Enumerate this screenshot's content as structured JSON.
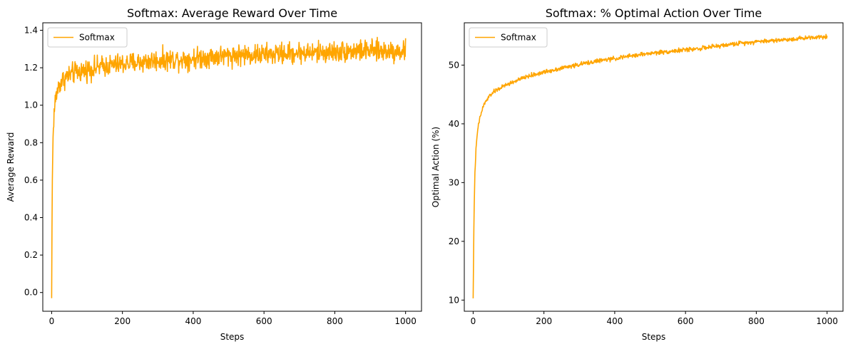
{
  "figure": {
    "background": "#ffffff"
  },
  "chart_data": [
    {
      "type": "line",
      "title": "Softmax: Average Reward Over Time",
      "xlabel": "Steps",
      "ylabel": "Average Reward",
      "xlim": [
        -25,
        1045
      ],
      "ylim": [
        -0.1,
        1.44
      ],
      "xticks": [
        0,
        200,
        400,
        600,
        800,
        1000
      ],
      "yticks": [
        0.0,
        0.2,
        0.4,
        0.6,
        0.8,
        1.0,
        1.2,
        1.4
      ],
      "ytick_labels": [
        "0.0",
        "0.2",
        "0.4",
        "0.6",
        "0.8",
        "1.0",
        "1.2",
        "1.4"
      ],
      "grid": false,
      "legend": "upper-left",
      "series": [
        {
          "name": "Softmax",
          "color": "#ffa500",
          "x": [
            0,
            1,
            2,
            3,
            4,
            5,
            6,
            8,
            10,
            12,
            15,
            20,
            25,
            30,
            40,
            50,
            60,
            80,
            100,
            150,
            200,
            250,
            300,
            350,
            400,
            450,
            500,
            550,
            600,
            650,
            700,
            750,
            800,
            850,
            900,
            950,
            1000
          ],
          "y": [
            -0.03,
            0.35,
            0.6,
            0.72,
            0.82,
            0.88,
            0.93,
            0.98,
            1.02,
            1.04,
            1.07,
            1.1,
            1.12,
            1.13,
            1.15,
            1.16,
            1.17,
            1.18,
            1.19,
            1.21,
            1.22,
            1.23,
            1.24,
            1.245,
            1.25,
            1.26,
            1.265,
            1.27,
            1.27,
            1.275,
            1.28,
            1.28,
            1.285,
            1.29,
            1.29,
            1.29,
            1.29
          ],
          "noise": 0.028
        }
      ]
    },
    {
      "type": "line",
      "title": "Softmax: % Optimal Action Over Time",
      "xlabel": "Steps",
      "ylabel": "Optimal Action (%)",
      "xlim": [
        -25,
        1045
      ],
      "ylim": [
        8.1,
        57.2
      ],
      "xticks": [
        0,
        200,
        400,
        600,
        800,
        1000
      ],
      "yticks": [
        10,
        20,
        30,
        40,
        50
      ],
      "ytick_labels": [
        "10",
        "20",
        "30",
        "40",
        "50"
      ],
      "grid": false,
      "legend": "upper-left",
      "series": [
        {
          "name": "Softmax",
          "color": "#ffa500",
          "x": [
            0,
            1,
            2,
            3,
            4,
            5,
            6,
            8,
            10,
            12,
            15,
            20,
            25,
            30,
            40,
            50,
            60,
            70,
            80,
            100,
            150,
            200,
            250,
            300,
            350,
            400,
            450,
            500,
            550,
            600,
            650,
            700,
            750,
            800,
            850,
            900,
            950,
            1000
          ],
          "y": [
            10.3,
            16,
            22,
            26,
            29,
            31.5,
            33,
            35.5,
            37,
            38.5,
            39.8,
            41.2,
            42.3,
            43.2,
            44.2,
            45,
            45.5,
            45.9,
            46.2,
            46.8,
            48,
            48.8,
            49.5,
            50.1,
            50.7,
            51.1,
            51.6,
            52,
            52.3,
            52.6,
            52.9,
            53.3,
            53.7,
            54,
            54.2,
            54.4,
            54.7,
            54.9
          ],
          "noise": 0.18
        }
      ]
    }
  ]
}
